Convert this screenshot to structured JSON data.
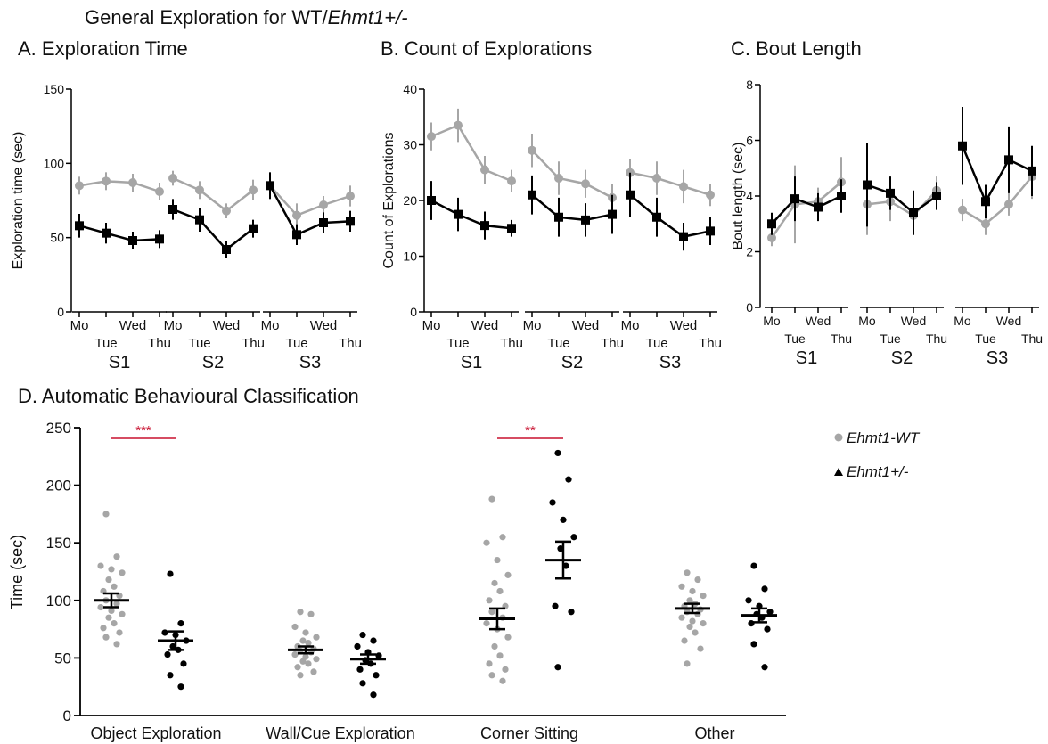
{
  "figure_title_plain": "General Exploration for WT/",
  "figure_title_italic": "Ehmt1+/-",
  "colors": {
    "wt": "#a6a6a6",
    "het": "#000000",
    "sig": "#c8102e",
    "axis": "#000000"
  },
  "legend": [
    {
      "label": "Ehmt1-WT",
      "marker": "circle",
      "color": "#a6a6a6"
    },
    {
      "label": "Ehmt1+/-",
      "marker": "triangle",
      "color": "#000000"
    }
  ],
  "chart_data": [
    {
      "panel": "A. Exploration Time",
      "type": "line",
      "ylabel": "Exploration time (sec)",
      "ylim": [
        0,
        150
      ],
      "yticks": [
        0,
        50,
        100,
        150
      ],
      "day_labels": [
        "Mo",
        "Tue",
        "Wed",
        "Thu"
      ],
      "session_labels": [
        "S1",
        "S2",
        "S3"
      ],
      "series": [
        {
          "group": "wt",
          "marker": "circle",
          "sessions": [
            {
              "mean": [
                85,
                88,
                87,
                81
              ],
              "err": [
                6,
                6,
                6,
                6
              ]
            },
            {
              "mean": [
                90,
                82,
                68,
                82
              ],
              "err": [
                5,
                6,
                5,
                7
              ]
            },
            {
              "mean": [
                85,
                65,
                72,
                78
              ],
              "err": [
                6,
                8,
                6,
                7
              ]
            }
          ]
        },
        {
          "group": "het",
          "marker": "square",
          "sessions": [
            {
              "mean": [
                58,
                53,
                48,
                49
              ],
              "err": [
                8,
                7,
                6,
                6
              ]
            },
            {
              "mean": [
                69,
                62,
                42,
                56
              ],
              "err": [
                7,
                8,
                6,
                6
              ]
            },
            {
              "mean": [
                85,
                52,
                60,
                61
              ],
              "err": [
                9,
                7,
                7,
                7
              ]
            }
          ]
        }
      ]
    },
    {
      "panel": "B. Count of Explorations",
      "type": "line",
      "ylabel": "Count of Explorations",
      "ylim": [
        0,
        40
      ],
      "yticks": [
        0,
        10,
        20,
        30,
        40
      ],
      "day_labels": [
        "Mo",
        "Tue",
        "Wed",
        "Thu"
      ],
      "session_labels": [
        "S1",
        "S2",
        "S3"
      ],
      "series": [
        {
          "group": "wt",
          "marker": "circle",
          "sessions": [
            {
              "mean": [
                31.5,
                33.5,
                25.5,
                23.5
              ],
              "err": [
                2.5,
                3,
                2.5,
                2
              ]
            },
            {
              "mean": [
                29,
                24,
                23,
                20.5
              ],
              "err": [
                3,
                3,
                2.5,
                2.5
              ]
            },
            {
              "mean": [
                25,
                24,
                22.5,
                21
              ],
              "err": [
                2.5,
                3,
                3,
                2
              ]
            }
          ]
        },
        {
          "group": "het",
          "marker": "square",
          "sessions": [
            {
              "mean": [
                20,
                17.5,
                15.5,
                15
              ],
              "err": [
                3.5,
                3,
                2.5,
                1.5
              ]
            },
            {
              "mean": [
                21,
                17,
                16.5,
                17.5
              ],
              "err": [
                3.5,
                3.5,
                3,
                3.5
              ]
            },
            {
              "mean": [
                21,
                17,
                13.5,
                14.5
              ],
              "err": [
                4,
                3.5,
                2.5,
                2.5
              ]
            }
          ]
        }
      ]
    },
    {
      "panel": "C. Bout Length",
      "type": "line",
      "ylabel": "Bout length (sec)",
      "ylim": [
        0,
        8
      ],
      "yticks": [
        0,
        2,
        4,
        6,
        8
      ],
      "day_labels": [
        "Mo",
        "Tue",
        "Wed",
        "Thu"
      ],
      "session_labels": [
        "S1",
        "S2",
        "S3"
      ],
      "series": [
        {
          "group": "wt",
          "marker": "circle",
          "sessions": [
            {
              "mean": [
                2.5,
                3.7,
                3.8,
                4.5
              ],
              "err": [
                0.3,
                1.4,
                0.5,
                0.9
              ]
            },
            {
              "mean": [
                3.7,
                3.8,
                3.3,
                4.2
              ],
              "err": [
                1.1,
                0.7,
                0.4,
                0.5
              ]
            },
            {
              "mean": [
                3.5,
                3.0,
                3.7,
                4.7
              ],
              "err": [
                0.4,
                0.4,
                0.4,
                0.8
              ]
            }
          ]
        },
        {
          "group": "het",
          "marker": "square",
          "sessions": [
            {
              "mean": [
                3.0,
                3.9,
                3.6,
                4.0
              ],
              "err": [
                0.4,
                0.8,
                0.5,
                0.6
              ]
            },
            {
              "mean": [
                4.4,
                4.1,
                3.4,
                4.0
              ],
              "err": [
                1.5,
                0.6,
                0.8,
                0.5
              ]
            },
            {
              "mean": [
                5.8,
                3.8,
                5.3,
                4.9
              ],
              "err": [
                1.4,
                0.6,
                1.2,
                0.9
              ]
            }
          ]
        }
      ]
    },
    {
      "panel": "D. Automatic Behavioural Classification",
      "type": "scatter",
      "ylabel": "Time (sec)",
      "ylim": [
        0,
        250
      ],
      "yticks": [
        0,
        50,
        100,
        150,
        200,
        250
      ],
      "categories": [
        "Object Exploration",
        "Wall/Cue Exploration",
        "Corner Sitting",
        "Other"
      ],
      "groups": [
        {
          "group": "wt",
          "name": "Ehmt1-WT",
          "data": [
            {
              "mean": 100,
              "sem": 6,
              "points": [
                175,
                138,
                130,
                127,
                124,
                118,
                112,
                108,
                104,
                100,
                97,
                94,
                91,
                88,
                85,
                80,
                76,
                72,
                68,
                62
              ]
            },
            {
              "mean": 57,
              "sem": 3,
              "points": [
                90,
                88,
                77,
                72,
                68,
                65,
                63,
                60,
                58,
                56,
                55,
                53,
                51,
                49,
                47,
                45,
                42,
                38,
                35
              ]
            },
            {
              "mean": 84,
              "sem": 9,
              "points": [
                188,
                155,
                150,
                135,
                122,
                115,
                108,
                100,
                95,
                90,
                85,
                80,
                75,
                68,
                60,
                52,
                45,
                40,
                35,
                30
              ]
            },
            {
              "mean": 93,
              "sem": 4,
              "points": [
                124,
                118,
                112,
                108,
                104,
                100,
                97,
                95,
                92,
                90,
                88,
                85,
                82,
                80,
                77,
                72,
                65,
                58,
                45
              ]
            }
          ]
        },
        {
          "group": "het",
          "name": "Ehmt1+/-",
          "data": [
            {
              "mean": 65,
              "sem": 8,
              "points": [
                123,
                80,
                72,
                70,
                65,
                60,
                57,
                53,
                45,
                35,
                25
              ]
            },
            {
              "mean": 49,
              "sem": 4,
              "points": [
                70,
                65,
                60,
                55,
                52,
                48,
                45,
                40,
                35,
                28,
                18
              ]
            },
            {
              "mean": 135,
              "sem": 16,
              "points": [
                228,
                205,
                185,
                170,
                155,
                145,
                130,
                95,
                90,
                42
              ]
            },
            {
              "mean": 87,
              "sem": 6,
              "points": [
                130,
                110,
                100,
                95,
                90,
                88,
                85,
                80,
                75,
                62,
                42
              ]
            }
          ]
        }
      ],
      "significance": [
        {
          "category_index": 0,
          "label": "***"
        },
        {
          "category_index": 2,
          "label": "**"
        }
      ]
    }
  ]
}
